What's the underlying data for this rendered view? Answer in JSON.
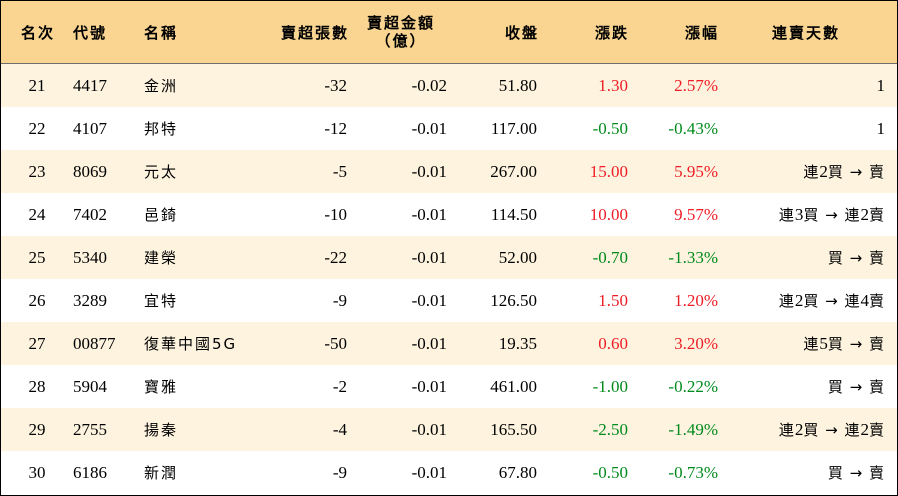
{
  "colors": {
    "header_bg": "#f9d591",
    "odd_row_bg": "#fdf3df",
    "even_row_bg": "#ffffff",
    "up": "#ee1c25",
    "down": "#008a1c"
  },
  "headers": {
    "rank": "名次",
    "code": "代號",
    "name": "名稱",
    "sell_volume": "賣超張數",
    "sell_amount_line1": "賣超金額",
    "sell_amount_line2": "（億）",
    "close": "收盤",
    "change": "漲跌",
    "change_pct": "漲幅",
    "streak": "連賣天數"
  },
  "rows": [
    {
      "rank": "21",
      "code": "4417",
      "name": "金洲",
      "vol": "-32",
      "amt": "-0.02",
      "close": "51.80",
      "chg": "1.30",
      "pct": "2.57%",
      "dir": "up",
      "streak_parts": [
        {
          "t": "1",
          "n": true
        }
      ]
    },
    {
      "rank": "22",
      "code": "4107",
      "name": "邦特",
      "vol": "-12",
      "amt": "-0.01",
      "close": "117.00",
      "chg": "-0.50",
      "pct": "-0.43%",
      "dir": "down",
      "streak_parts": [
        {
          "t": "1",
          "n": true
        }
      ]
    },
    {
      "rank": "23",
      "code": "8069",
      "name": "元太",
      "vol": "-5",
      "amt": "-0.01",
      "close": "267.00",
      "chg": "15.00",
      "pct": "5.95%",
      "dir": "up",
      "streak_parts": [
        {
          "t": "連 ",
          "n": false
        },
        {
          "t": "2",
          "n": true
        },
        {
          "t": " 買 → 賣",
          "n": false
        }
      ]
    },
    {
      "rank": "24",
      "code": "7402",
      "name": "邑錡",
      "vol": "-10",
      "amt": "-0.01",
      "close": "114.50",
      "chg": "10.00",
      "pct": "9.57%",
      "dir": "up",
      "streak_parts": [
        {
          "t": "連 ",
          "n": false
        },
        {
          "t": "3",
          "n": true
        },
        {
          "t": " 買 → 連 ",
          "n": false
        },
        {
          "t": "2",
          "n": true
        },
        {
          "t": " 賣",
          "n": false
        }
      ]
    },
    {
      "rank": "25",
      "code": "5340",
      "name": "建榮",
      "vol": "-22",
      "amt": "-0.01",
      "close": "52.00",
      "chg": "-0.70",
      "pct": "-1.33%",
      "dir": "down",
      "streak_parts": [
        {
          "t": "買 → 賣",
          "n": false
        }
      ]
    },
    {
      "rank": "26",
      "code": "3289",
      "name": "宜特",
      "vol": "-9",
      "amt": "-0.01",
      "close": "126.50",
      "chg": "1.50",
      "pct": "1.20%",
      "dir": "up",
      "streak_parts": [
        {
          "t": "連 ",
          "n": false
        },
        {
          "t": "2",
          "n": true
        },
        {
          "t": " 買 → 連 ",
          "n": false
        },
        {
          "t": "4",
          "n": true
        },
        {
          "t": " 賣",
          "n": false
        }
      ]
    },
    {
      "rank": "27",
      "code": "00877",
      "name": "復華中國5G",
      "vol": "-50",
      "amt": "-0.01",
      "close": "19.35",
      "chg": "0.60",
      "pct": "3.20%",
      "dir": "up",
      "streak_parts": [
        {
          "t": "連 ",
          "n": false
        },
        {
          "t": "5",
          "n": true
        },
        {
          "t": " 買 → 賣",
          "n": false
        }
      ]
    },
    {
      "rank": "28",
      "code": "5904",
      "name": "寶雅",
      "vol": "-2",
      "amt": "-0.01",
      "close": "461.00",
      "chg": "-1.00",
      "pct": "-0.22%",
      "dir": "down",
      "streak_parts": [
        {
          "t": "買 → 賣",
          "n": false
        }
      ]
    },
    {
      "rank": "29",
      "code": "2755",
      "name": "揚秦",
      "vol": "-4",
      "amt": "-0.01",
      "close": "165.50",
      "chg": "-2.50",
      "pct": "-1.49%",
      "dir": "down",
      "streak_parts": [
        {
          "t": "連 ",
          "n": false
        },
        {
          "t": "2",
          "n": true
        },
        {
          "t": " 買 → 連 ",
          "n": false
        },
        {
          "t": "2",
          "n": true
        },
        {
          "t": " 賣",
          "n": false
        }
      ]
    },
    {
      "rank": "30",
      "code": "6186",
      "name": "新潤",
      "vol": "-9",
      "amt": "-0.01",
      "close": "67.80",
      "chg": "-0.50",
      "pct": "-0.73%",
      "dir": "down",
      "streak_parts": [
        {
          "t": "買 → 賣",
          "n": false
        }
      ]
    }
  ]
}
